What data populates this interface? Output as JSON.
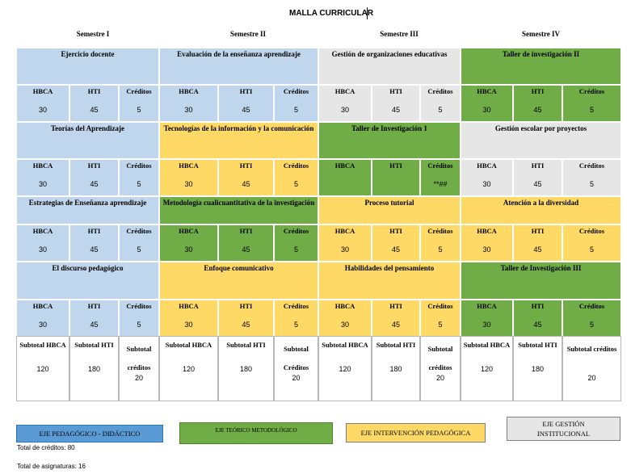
{
  "title": "MALLA CURRICULAR",
  "semesters": [
    "Semestre I",
    "Semestre II",
    "Semestre III",
    "Semestre IV"
  ],
  "col_labels": {
    "hbca": "HBCA",
    "hti": "HTI",
    "cred": "Créditos"
  },
  "colors": {
    "blue": "#c0d6ec",
    "yellow": "#fed965",
    "green": "#70ad47",
    "gray": "#e7e6e6"
  },
  "rows": [
    [
      {
        "name": "Ejercicio docente",
        "color": "blue",
        "hbca": "30",
        "hti": "45",
        "cred": "5"
      },
      {
        "name": "Evaluación de la enseñanza aprendizaje",
        "color": "blue",
        "hbca": "30",
        "hti": "45",
        "cred": "5"
      },
      {
        "name": "Gestión de organizaciones educativas",
        "color": "gray",
        "hbca": "30",
        "hti": "45",
        "cred": "5"
      },
      {
        "name": "Taller de investigación II",
        "color": "green",
        "hbca": "30",
        "hti": "45",
        "cred": "5"
      }
    ],
    [
      {
        "name": "Teorías del Aprendizaje",
        "color": "blue",
        "hbca": "30",
        "hti": "45",
        "cred": "5"
      },
      {
        "name": "Tecnologías de la información y la comunicación",
        "color": "yellow",
        "hbca": "30",
        "hti": "45",
        "cred": "5"
      },
      {
        "name": "Taller de Investigación 1",
        "color": "green",
        "hbca": "",
        "hti": "",
        "cred": "**##"
      },
      {
        "name": "Gestión escolar por proyectos",
        "color": "gray",
        "hbca": "30",
        "hti": "45",
        "cred": "5"
      }
    ],
    [
      {
        "name": "Estrategias de Enseñanza aprendizaje",
        "color": "blue",
        "hbca": "30",
        "hti": "45",
        "cred": "5"
      },
      {
        "name": "Metodología cualicuantitativa de la investigación",
        "color": "green",
        "hbca": "30",
        "hti": "45",
        "cred": "5"
      },
      {
        "name": "Proceso tutorial",
        "color": "yellow",
        "hbca": "30",
        "hti": "45",
        "cred": "5"
      },
      {
        "name": "Atención a la diversidad",
        "color": "yellow",
        "hbca": "30",
        "hti": "45",
        "cred": "5"
      }
    ],
    [
      {
        "name": "El discurso pedagógico",
        "color": "blue",
        "hbca": "30",
        "hti": "45",
        "cred": "5"
      },
      {
        "name": "Enfoque comunicativo",
        "color": "yellow",
        "hbca": "30",
        "hti": "45",
        "cred": "5"
      },
      {
        "name": "Habilidades del pensamiento",
        "color": "yellow",
        "hbca": "30",
        "hti": "45",
        "cred": "5"
      },
      {
        "name": "Taller de Investigación III",
        "color": "green",
        "hbca": "30",
        "hti": "45",
        "cred": "5"
      }
    ]
  ],
  "subtotals": [
    {
      "hbca_label": "Subtotal HBCA",
      "hbca": "120",
      "hti_label": "Subtotal HTI",
      "hti": "180",
      "cred_label": "Subtotal créditos",
      "cred": "20"
    },
    {
      "hbca_label": "Subtotal HBCA",
      "hbca": "120",
      "hti_label": "Subtotal HTI",
      "hti": "180",
      "cred_label": "Subtotal Créditos",
      "cred": "20"
    },
    {
      "hbca_label": "Subtotal HBCA",
      "hbca": "120",
      "hti_label": "Subtotal HTI",
      "hti": "180",
      "cred_label": "Subtotal créditos",
      "cred": "20"
    },
    {
      "hbca_label": "Subtotal HBCA",
      "hbca": "120",
      "hti_label": "Subtotal HTI",
      "hti": "180",
      "cred_label": "Subtotal créditos",
      "cred": "20"
    }
  ],
  "legend": [
    {
      "label": "EJE PEDAGÓGICO - DIDÁCTICO",
      "color": "#5b9bd5"
    },
    {
      "label": "EJE TEÓRICO METODOLÓGICO",
      "color": "#70ad47"
    },
    {
      "label": "EJE INTERVENCIÓN PEDAGÓGICA",
      "color": "#fed965"
    },
    {
      "label": "EJE GESTIÓN INSTITUCIONAL",
      "color": "#e7e6e6"
    }
  ],
  "footer": {
    "total_credits": "Total de créditos: 80",
    "total_subjects": "Total de asignaturas: 16"
  }
}
